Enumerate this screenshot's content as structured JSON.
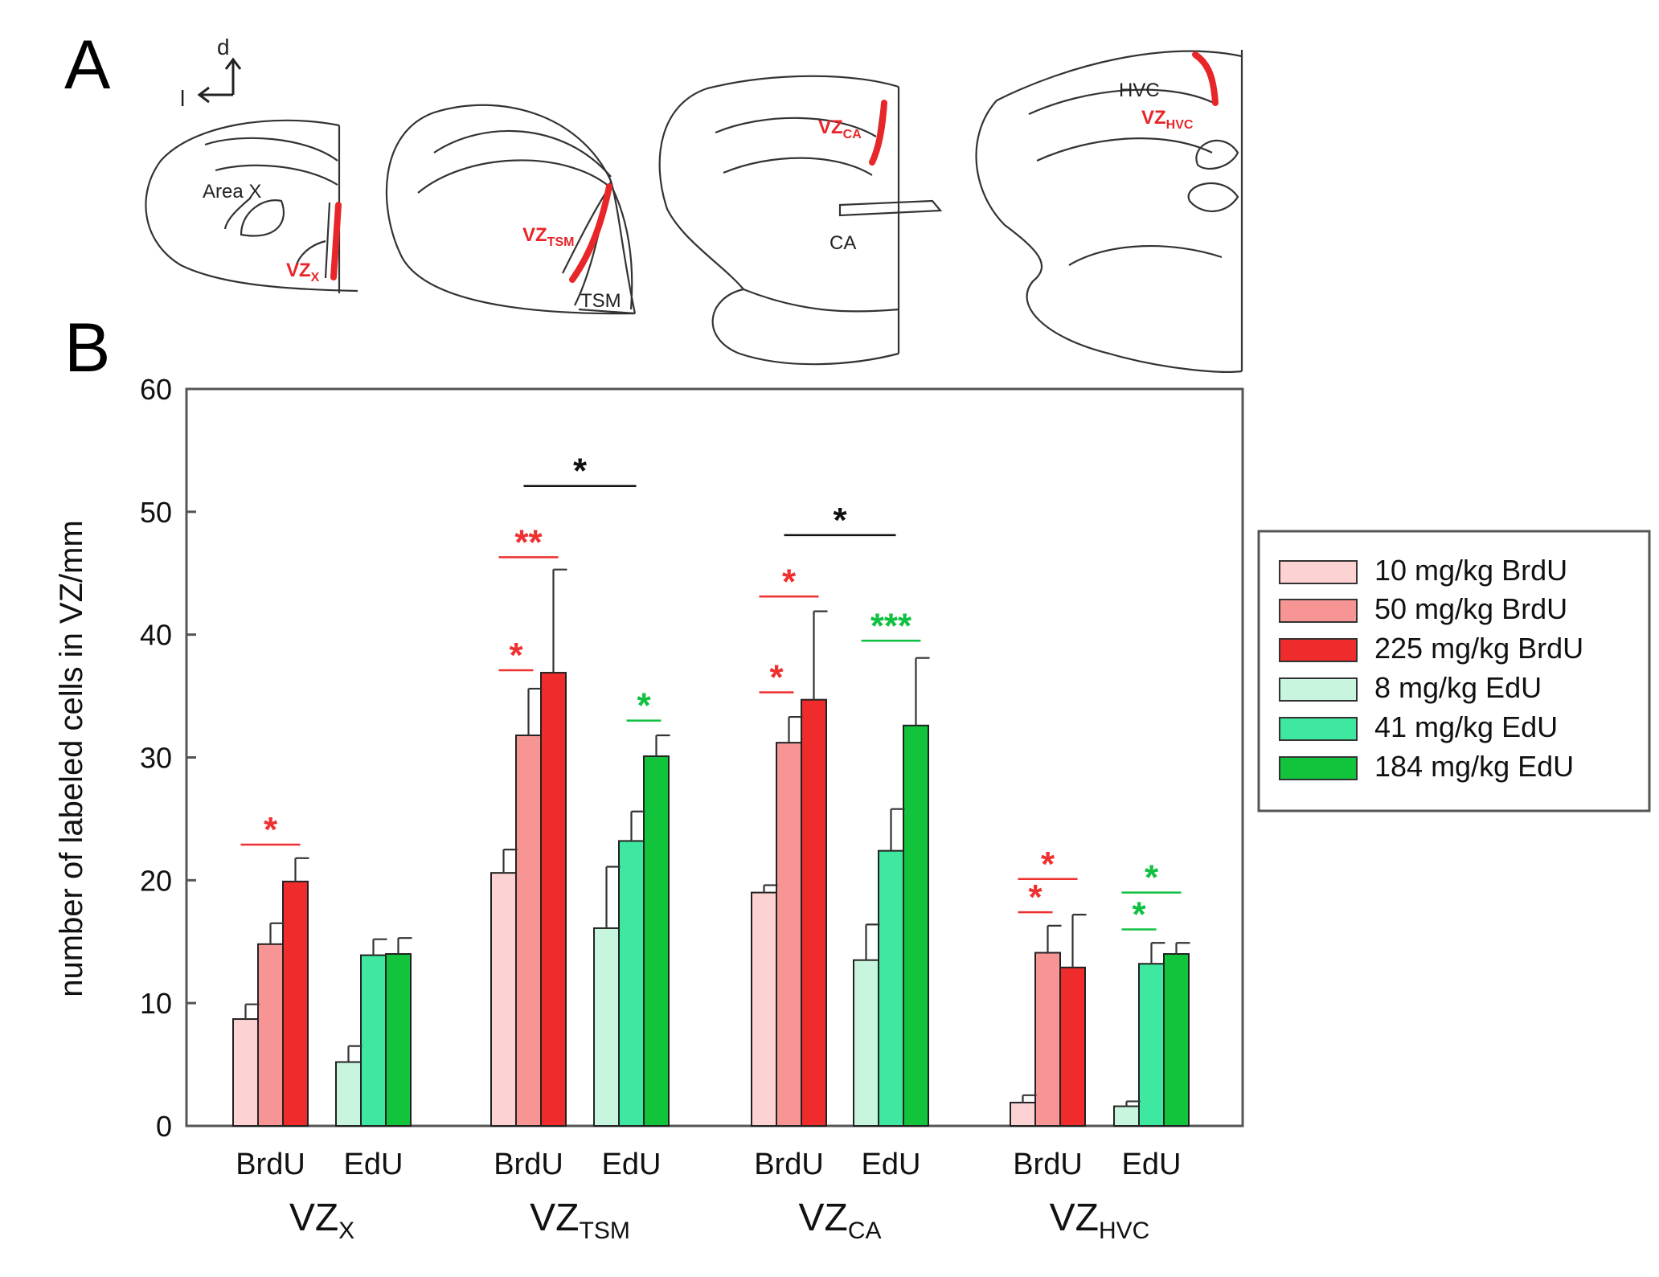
{
  "panel_a": {
    "label": "A",
    "orientation": {
      "dorsal": "d",
      "lateral": "l"
    },
    "sections": [
      {
        "region": "Area X",
        "vz_main": "VZ",
        "vz_sub": "X"
      },
      {
        "region": "TSM",
        "vz_main": "VZ",
        "vz_sub": "TSM"
      },
      {
        "region": "CA",
        "vz_main": "VZ",
        "vz_sub": "CA"
      },
      {
        "region": "HVC",
        "vz_main": "VZ",
        "vz_sub": "HVC"
      }
    ]
  },
  "panel_b": {
    "label": "B"
  },
  "colors": {
    "c10": "#fdd2d2",
    "c50": "#f79595",
    "c225": "#ef2b2b",
    "c8": "#c8f5dd",
    "c41": "#3ee8a0",
    "c184": "#12c43c",
    "red_sig": "#ef3030",
    "green_sig": "#10c040",
    "black_sig": "#111111"
  },
  "chart_data": {
    "type": "bar",
    "ylabel": "number of labeled cells in  VZ/mm",
    "ylim": [
      0,
      60
    ],
    "yticks": [
      {
        "value": 0,
        "label": "0"
      },
      {
        "value": 10,
        "label": "10"
      },
      {
        "value": 20,
        "label": "20"
      },
      {
        "value": 30,
        "label": "30"
      },
      {
        "value": 40,
        "label": "40"
      },
      {
        "value": 50,
        "label": "50"
      },
      {
        "value": 60,
        "label": "60"
      }
    ],
    "regions": [
      {
        "main": "VZ",
        "sub": "X"
      },
      {
        "main": "VZ",
        "sub": "TSM"
      },
      {
        "main": "VZ",
        "sub": "CA"
      },
      {
        "main": "VZ",
        "sub": "HVC"
      }
    ],
    "subgroup_labels": [
      "BrdU",
      "EdU"
    ],
    "series": [
      {
        "name": "10 mg/kg BrdU",
        "color": "#fdd2d2",
        "values": [
          8.7,
          20.6,
          19.0,
          1.9
        ],
        "errors": [
          1.2,
          1.9,
          0.6,
          0.6
        ]
      },
      {
        "name": "50 mg/kg BrdU",
        "color": "#f79595",
        "values": [
          14.8,
          31.8,
          31.2,
          14.1
        ],
        "errors": [
          1.7,
          3.8,
          2.1,
          2.2
        ]
      },
      {
        "name": "225 mg/kg BrdU",
        "color": "#ef2b2b",
        "values": [
          19.9,
          36.9,
          34.7,
          12.9
        ],
        "errors": [
          1.9,
          8.4,
          7.2,
          4.3
        ]
      },
      {
        "name": "8 mg/kg EdU",
        "color": "#c8f5dd",
        "values": [
          5.2,
          16.1,
          13.5,
          1.6
        ],
        "errors": [
          1.3,
          5.0,
          2.9,
          0.4
        ]
      },
      {
        "name": "41 mg/kg EdU",
        "color": "#3ee8a0",
        "values": [
          13.9,
          23.2,
          22.4,
          13.2
        ],
        "errors": [
          1.3,
          2.4,
          3.4,
          1.7
        ]
      },
      {
        "name": "184 mg/kg EdU",
        "color": "#12c43c",
        "values": [
          14.0,
          30.1,
          32.6,
          14.0
        ],
        "errors": [
          1.3,
          1.7,
          5.5,
          0.9
        ]
      }
    ],
    "significance": [
      {
        "label": "*",
        "color": "red",
        "region": 0,
        "from": 0,
        "to": 2,
        "y": 22.9
      },
      {
        "label": "*",
        "color": "red",
        "region": 1,
        "from": 0,
        "to": 1,
        "y": 37.1
      },
      {
        "label": "**",
        "color": "red",
        "region": 1,
        "from": 0,
        "to": 2,
        "y": 46.3
      },
      {
        "label": "*",
        "color": "black",
        "region": 1,
        "from": 1,
        "to": 4,
        "y": 52.1
      },
      {
        "label": "*",
        "color": "green",
        "region": 1,
        "from": 4,
        "to": 5,
        "y": 33.0
      },
      {
        "label": "*",
        "color": "red",
        "region": 2,
        "from": 0,
        "to": 1,
        "y": 35.3
      },
      {
        "label": "*",
        "color": "red",
        "region": 2,
        "from": 0,
        "to": 2,
        "y": 43.1
      },
      {
        "label": "*",
        "color": "black",
        "region": 2,
        "from": 1,
        "to": 4,
        "y": 48.1
      },
      {
        "label": "***",
        "color": "green",
        "region": 2,
        "from": 3,
        "to": 5,
        "y": 39.5
      },
      {
        "label": "*",
        "color": "red",
        "region": 3,
        "from": 0,
        "to": 1,
        "y": 17.4
      },
      {
        "label": "*",
        "color": "red",
        "region": 3,
        "from": 0,
        "to": 2,
        "y": 20.1
      },
      {
        "label": "*",
        "color": "green",
        "region": 3,
        "from": 3,
        "to": 4,
        "y": 16.0
      },
      {
        "label": "*",
        "color": "green",
        "region": 3,
        "from": 3,
        "to": 5,
        "y": 19.0
      }
    ],
    "legend_position": "right"
  }
}
